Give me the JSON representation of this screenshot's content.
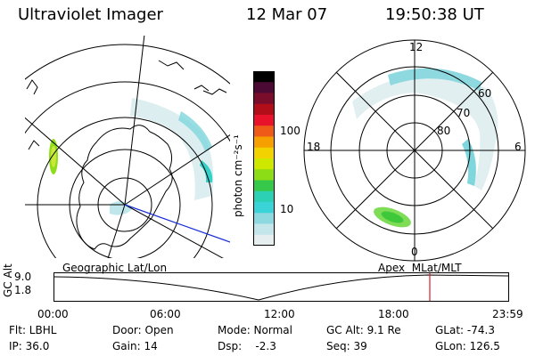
{
  "header": {
    "title": "Ultraviolet Imager",
    "date": "12 Mar 07",
    "time": "19:50:38 UT"
  },
  "colorbar": {
    "unit_label": "photon cm⁻²s⁻¹",
    "ticks": [
      "100",
      "10"
    ],
    "colors": [
      "#000000",
      "#4b0a33",
      "#7a0d2c",
      "#b10e1a",
      "#e8122b",
      "#f05a18",
      "#f5a000",
      "#f2d200",
      "#cfe800",
      "#8cdc16",
      "#35c84a",
      "#2cd0b4",
      "#3ad3d8",
      "#8ed8e0",
      "#c4e6ea",
      "#e6eef0"
    ]
  },
  "left_map": {
    "label": "Geographic Lat/Lon"
  },
  "right_map": {
    "label": "Apex  MLat/MLT",
    "mlt_labels": {
      "top": "12",
      "bottom": "0",
      "left": "18",
      "right": "6"
    },
    "lat_labels": [
      "60",
      "70",
      "80"
    ]
  },
  "timeline": {
    "axis_label": "GC Alt",
    "ytick_top": "9.0",
    "ytick_bottom": "1.8",
    "xticks": [
      "00:00",
      "06:00",
      "12:00",
      "18:00",
      "23:59"
    ]
  },
  "footer": {
    "row1": {
      "flt": "Flt: LBHL",
      "door": "Door: Open",
      "mode": "Mode: Normal",
      "gcalt": "GC Alt: 9.1 Re",
      "glat": "GLat: -74.3"
    },
    "row2": {
      "ip": "IP: 36.0",
      "gain": "Gain: 14",
      "dsp": "Dsp:    -2.3",
      "seq": "Seq: 39",
      "glon": "GLon: 126.5"
    }
  }
}
